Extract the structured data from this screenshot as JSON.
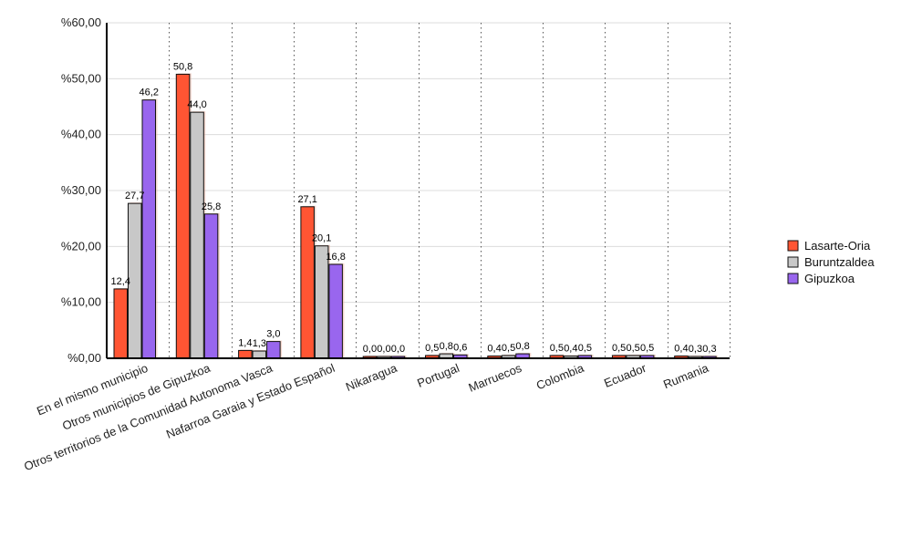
{
  "chart_data": {
    "type": "bar",
    "categories": [
      "En el mismo municipio",
      "Otros municipios de Gipuzkoa",
      "Otros territorios de la Comunidad Autonoma Vasca",
      "Nafarroa Garaia y Estado Español",
      "Nikaragua",
      "Portugal",
      "Marruecos",
      "Colombia",
      "Ecuador",
      "Rumania"
    ],
    "series": [
      {
        "name": "Lasarte-Oria",
        "color": "#ff5533",
        "values": [
          12.4,
          50.8,
          1.4,
          27.1,
          0.0,
          0.5,
          0.4,
          0.5,
          0.5,
          0.4
        ],
        "labels": [
          "12,4",
          "50,8",
          "1,4",
          "27,1",
          "0,0",
          "0,5",
          "0,4",
          "0,5",
          "0,5",
          "0,4"
        ]
      },
      {
        "name": "Buruntzaldea",
        "color": "#c8c8c8",
        "values": [
          27.7,
          44.0,
          1.3,
          20.1,
          0.0,
          0.8,
          0.5,
          0.4,
          0.5,
          0.3
        ],
        "labels": [
          "27,7",
          "44,0",
          "1,3",
          "20,1",
          "0,0",
          "0,8",
          "0,5",
          "0,4",
          "0,5",
          "0,3"
        ]
      },
      {
        "name": "Gipuzkoa",
        "color": "#9966ee",
        "values": [
          46.2,
          25.8,
          3.0,
          16.8,
          0.0,
          0.6,
          0.8,
          0.5,
          0.5,
          0.3
        ],
        "labels": [
          "46,2",
          "25,8",
          "3,0",
          "16,8",
          "0,0",
          "0,6",
          "0,8",
          "0,5",
          "0,5",
          "0,3"
        ]
      }
    ],
    "ylim": [
      0,
      60
    ],
    "yticks": [
      0,
      10,
      20,
      30,
      40,
      50,
      60
    ],
    "ytick_labels": [
      "%0,00",
      "%10,00",
      "%20,00",
      "%30,00",
      "%40,00",
      "%50,00",
      "%60,00"
    ],
    "grid": true,
    "legend": "right",
    "title": "",
    "xlabel": "",
    "ylabel": ""
  }
}
